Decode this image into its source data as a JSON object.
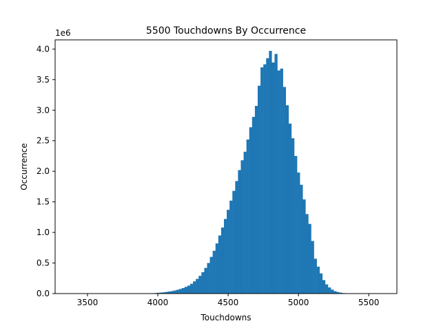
{
  "chart_data": {
    "type": "bar",
    "title": "5500 Touchdowns By Occurrence",
    "xlabel": "Touchdowns",
    "ylabel": "Occurrence",
    "y_offset_text": "1e6",
    "xlim": [
      3270,
      5700
    ],
    "ylim": [
      0,
      4.15
    ],
    "x_ticks": [
      3500,
      4000,
      4500,
      5000,
      5500
    ],
    "y_ticks": [
      0.0,
      0.5,
      1.0,
      1.5,
      2.0,
      2.5,
      3.0,
      3.5,
      4.0
    ],
    "y_unit_multiplier": 1000000,
    "grid": false,
    "legend": "none",
    "bar_color": "#1f77b4",
    "bin_width": 19.6,
    "x": [
      3960,
      3980,
      4000,
      4020,
      4040,
      4060,
      4080,
      4100,
      4120,
      4140,
      4160,
      4180,
      4200,
      4220,
      4240,
      4260,
      4280,
      4300,
      4320,
      4340,
      4360,
      4380,
      4400,
      4420,
      4440,
      4460,
      4480,
      4500,
      4520,
      4540,
      4560,
      4580,
      4600,
      4620,
      4640,
      4660,
      4680,
      4700,
      4720,
      4740,
      4760,
      4780,
      4800,
      4820,
      4840,
      4860,
      4880,
      4900,
      4920,
      4940,
      4960,
      4980,
      5000,
      5020,
      5040,
      5060,
      5080,
      5100,
      5120,
      5140,
      5160,
      5180,
      5200,
      5220,
      5240,
      5260,
      5280,
      5300,
      5320,
      5340,
      5360,
      5380,
      5400,
      5420,
      5440,
      5460,
      5480,
      5500,
      5520,
      5540,
      5560,
      5580
    ],
    "values": [
      0.005,
      0.008,
      0.012,
      0.016,
      0.02,
      0.026,
      0.033,
      0.04,
      0.05,
      0.062,
      0.075,
      0.09,
      0.11,
      0.13,
      0.16,
      0.2,
      0.24,
      0.29,
      0.35,
      0.42,
      0.5,
      0.6,
      0.7,
      0.82,
      0.95,
      1.08,
      1.22,
      1.37,
      1.52,
      1.68,
      1.84,
      2.02,
      2.18,
      2.32,
      2.52,
      2.72,
      2.89,
      3.07,
      3.4,
      3.7,
      3.75,
      3.85,
      3.97,
      3.78,
      3.92,
      3.65,
      3.68,
      3.38,
      3.08,
      2.78,
      2.54,
      2.25,
      1.98,
      1.78,
      1.54,
      1.3,
      1.14,
      0.86,
      0.57,
      0.44,
      0.33,
      0.22,
      0.15,
      0.1,
      0.065,
      0.04,
      0.025,
      0.015,
      0.008,
      0.004,
      0.002,
      0.001,
      0.0005,
      0.0003,
      0.0002,
      0.0001,
      5e-05,
      3e-05,
      2e-05,
      1e-05,
      1e-05,
      1e-05
    ]
  }
}
